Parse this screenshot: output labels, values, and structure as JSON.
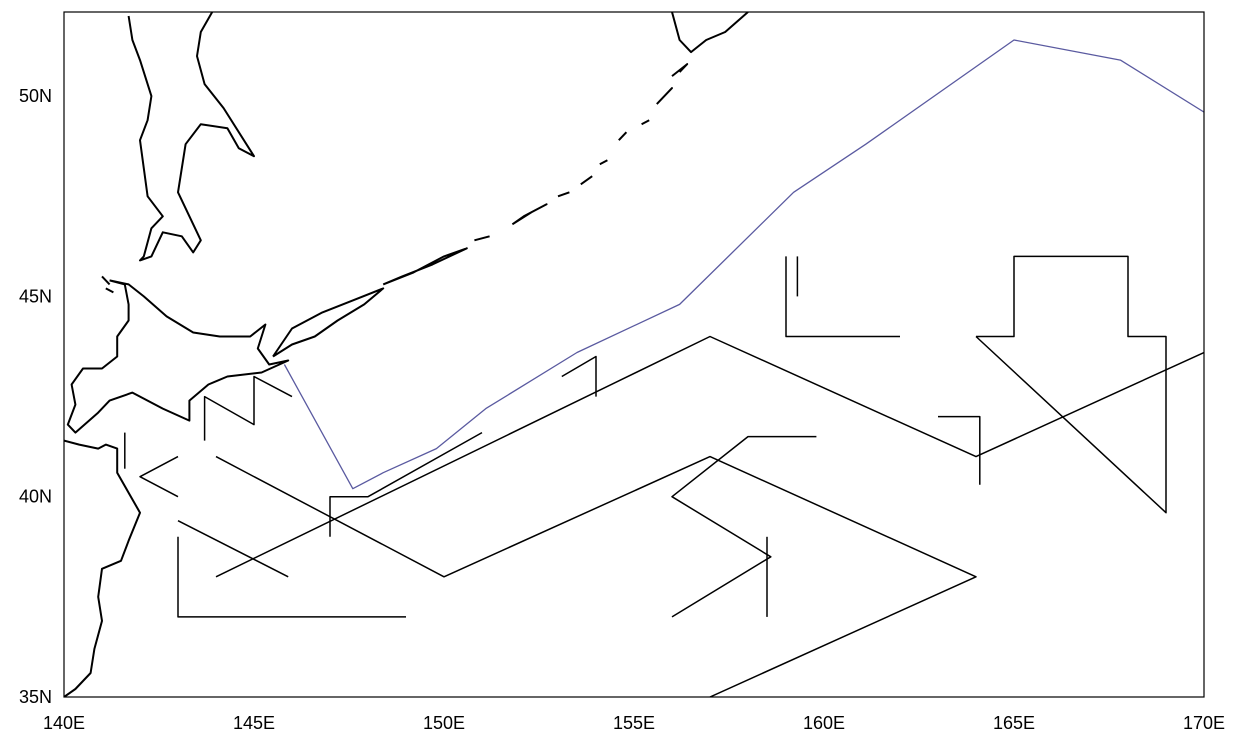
{
  "map": {
    "projection": "equirectangular",
    "lon_range": [
      140,
      170
    ],
    "lat_range": [
      35,
      52.1
    ],
    "frame_color": "#000000",
    "coastline_color": "#000000",
    "track_color": "#000000",
    "front_color": "#5a5aa0"
  },
  "axes": {
    "x_ticks": [
      {
        "lon": 140,
        "label": "140E"
      },
      {
        "lon": 145,
        "label": "145E"
      },
      {
        "lon": 150,
        "label": "150E"
      },
      {
        "lon": 155,
        "label": "155E"
      },
      {
        "lon": 160,
        "label": "160E"
      },
      {
        "lon": 165,
        "label": "165E"
      },
      {
        "lon": 170,
        "label": "170E"
      }
    ],
    "y_ticks": [
      {
        "lat": 35,
        "label": "35N"
      },
      {
        "lat": 40,
        "label": "40N"
      },
      {
        "lat": 45,
        "label": "45N"
      },
      {
        "lat": 50,
        "label": "50N"
      }
    ]
  },
  "front_line": [
    [
      145.8,
      43.3
    ],
    [
      147.6,
      40.2
    ],
    [
      148.4,
      40.6
    ],
    [
      149.8,
      41.2
    ],
    [
      151.1,
      42.2
    ],
    [
      153.5,
      43.6
    ],
    [
      156.2,
      44.8
    ],
    [
      159.2,
      47.6
    ],
    [
      161.1,
      48.8
    ],
    [
      165.0,
      51.4
    ],
    [
      167.8,
      50.9
    ],
    [
      170.0,
      49.6
    ]
  ],
  "tracks": [
    [
      [
        141.6,
        41.6
      ],
      [
        141.6,
        40.7
      ]
    ],
    [
      [
        143.0,
        41.0
      ],
      [
        142.0,
        40.5
      ],
      [
        143.0,
        40.0
      ]
    ],
    [
      [
        143.7,
        41.4
      ],
      [
        143.7,
        42.5
      ],
      [
        145.0,
        41.8
      ],
      [
        145.0,
        43.0
      ],
      [
        146.0,
        42.5
      ]
    ],
    [
      [
        144.0,
        41.0
      ],
      [
        150.0,
        38.0
      ],
      [
        157.0,
        41.0
      ],
      [
        164.0,
        38.0
      ],
      [
        157.0,
        35.0
      ]
    ],
    [
      [
        143.0,
        39.4
      ],
      [
        145.9,
        38.0
      ]
    ],
    [
      [
        143.0,
        39.0
      ],
      [
        143.0,
        37.0
      ],
      [
        149.0,
        37.0
      ]
    ],
    [
      [
        144.0,
        38.0
      ],
      [
        157.0,
        44.0
      ],
      [
        164.0,
        41.0
      ],
      [
        170.0,
        43.6
      ]
    ],
    [
      [
        147.0,
        39.0
      ],
      [
        147.0,
        40.0
      ],
      [
        148.0,
        40.0
      ],
      [
        151.0,
        41.6
      ]
    ],
    [
      [
        153.1,
        43.0
      ],
      [
        154.0,
        43.5
      ],
      [
        154.0,
        42.5
      ]
    ],
    [
      [
        156.0,
        37.0
      ],
      [
        158.6,
        38.5
      ],
      [
        156.0,
        40.0
      ],
      [
        158.0,
        41.5
      ],
      [
        159.8,
        41.5
      ]
    ],
    [
      [
        158.5,
        39.0
      ],
      [
        158.5,
        37.0
      ]
    ],
    [
      [
        159.0,
        46.0
      ],
      [
        159.0,
        44.0
      ],
      [
        162.0,
        44.0
      ]
    ],
    [
      [
        159.3,
        46.0
      ],
      [
        159.3,
        45.0
      ]
    ],
    [
      [
        163.0,
        42.0
      ],
      [
        164.1,
        42.0
      ],
      [
        164.1,
        40.3
      ]
    ],
    [
      [
        164.0,
        44.0
      ],
      [
        169.0,
        39.6
      ],
      [
        169.0,
        44.0
      ],
      [
        168.0,
        44.0
      ],
      [
        168.0,
        46.0
      ],
      [
        165.0,
        46.0
      ],
      [
        165.0,
        44.0
      ],
      [
        164.0,
        44.0
      ]
    ]
  ],
  "coastlines": {
    "sakhalin": [
      [
        141.7,
        52.0
      ],
      [
        141.8,
        51.4
      ],
      [
        142.0,
        50.9
      ],
      [
        142.3,
        50.0
      ],
      [
        142.2,
        49.4
      ],
      [
        142.0,
        48.9
      ],
      [
        142.1,
        48.2
      ],
      [
        142.2,
        47.5
      ],
      [
        142.6,
        47.0
      ],
      [
        142.3,
        46.7
      ],
      [
        142.1,
        46.0
      ],
      [
        142.0,
        45.9
      ],
      [
        142.3,
        46.0
      ],
      [
        142.6,
        46.6
      ],
      [
        143.1,
        46.5
      ],
      [
        143.4,
        46.1
      ],
      [
        143.6,
        46.4
      ],
      [
        143.3,
        47.0
      ],
      [
        143.0,
        47.6
      ],
      [
        143.2,
        48.8
      ],
      [
        143.6,
        49.3
      ],
      [
        144.3,
        49.2
      ],
      [
        144.6,
        48.7
      ],
      [
        145.0,
        48.5
      ],
      [
        144.2,
        49.7
      ],
      [
        143.7,
        50.3
      ],
      [
        143.5,
        51.0
      ],
      [
        143.6,
        51.6
      ],
      [
        143.9,
        52.1
      ]
    ],
    "hokkaido": [
      [
        141.2,
        45.4
      ],
      [
        141.7,
        45.3
      ],
      [
        142.1,
        45.0
      ],
      [
        142.7,
        44.5
      ],
      [
        143.4,
        44.1
      ],
      [
        144.1,
        44.0
      ],
      [
        144.9,
        44.0
      ],
      [
        145.3,
        44.3
      ],
      [
        145.1,
        43.7
      ],
      [
        145.4,
        43.3
      ],
      [
        145.9,
        43.4
      ],
      [
        145.2,
        43.1
      ],
      [
        144.3,
        43.0
      ],
      [
        143.8,
        42.8
      ],
      [
        143.3,
        42.4
      ],
      [
        143.3,
        41.9
      ],
      [
        142.6,
        42.2
      ],
      [
        141.8,
        42.6
      ],
      [
        141.2,
        42.4
      ],
      [
        140.9,
        42.1
      ],
      [
        140.3,
        41.6
      ],
      [
        140.1,
        41.8
      ],
      [
        140.3,
        42.3
      ],
      [
        140.2,
        42.8
      ],
      [
        140.5,
        43.2
      ],
      [
        141.0,
        43.2
      ],
      [
        141.4,
        43.5
      ],
      [
        141.4,
        44.0
      ],
      [
        141.7,
        44.4
      ],
      [
        141.7,
        44.8
      ],
      [
        141.6,
        45.3
      ],
      [
        141.2,
        45.4
      ]
    ],
    "honshu_north": [
      [
        140.0,
        41.4
      ],
      [
        140.4,
        41.3
      ],
      [
        140.9,
        41.2
      ],
      [
        141.1,
        41.3
      ],
      [
        141.4,
        41.2
      ],
      [
        141.4,
        40.6
      ],
      [
        141.7,
        40.1
      ],
      [
        142.0,
        39.6
      ],
      [
        141.7,
        38.9
      ],
      [
        141.5,
        38.4
      ],
      [
        141.0,
        38.2
      ],
      [
        140.9,
        37.5
      ],
      [
        141.0,
        36.9
      ],
      [
        140.8,
        36.2
      ],
      [
        140.7,
        35.6
      ],
      [
        140.3,
        35.2
      ],
      [
        140.0,
        35.0
      ]
    ],
    "kamchatka": [
      [
        156.0,
        52.1
      ],
      [
        156.2,
        51.4
      ],
      [
        156.5,
        51.1
      ],
      [
        156.9,
        51.4
      ],
      [
        157.4,
        51.6
      ],
      [
        158.0,
        52.1
      ]
    ],
    "kurils": [
      [
        [
          145.5,
          43.5
        ],
        [
          146.0,
          43.8
        ],
        [
          146.6,
          44.0
        ],
        [
          147.2,
          44.4
        ],
        [
          147.9,
          44.8
        ],
        [
          148.4,
          45.2
        ],
        [
          147.6,
          44.9
        ],
        [
          146.8,
          44.6
        ],
        [
          146.0,
          44.2
        ],
        [
          145.5,
          43.5
        ]
      ],
      [
        [
          148.4,
          45.3
        ],
        [
          149.2,
          45.6
        ],
        [
          150.0,
          46.0
        ],
        [
          150.6,
          46.2
        ],
        [
          149.7,
          45.8
        ],
        [
          148.9,
          45.5
        ],
        [
          148.4,
          45.3
        ]
      ],
      [
        [
          150.8,
          46.4
        ],
        [
          151.2,
          46.5
        ]
      ],
      [
        [
          151.8,
          46.8
        ],
        [
          152.3,
          47.1
        ],
        [
          152.7,
          47.3
        ],
        [
          152.1,
          47.0
        ],
        [
          151.8,
          46.8
        ]
      ],
      [
        [
          153.0,
          47.5
        ],
        [
          153.3,
          47.6
        ]
      ],
      [
        [
          153.6,
          47.8
        ],
        [
          153.9,
          48.0
        ]
      ],
      [
        [
          154.1,
          48.3
        ],
        [
          154.3,
          48.4
        ]
      ],
      [
        [
          154.6,
          48.9
        ],
        [
          154.8,
          49.1
        ]
      ],
      [
        [
          155.2,
          49.3
        ],
        [
          155.4,
          49.4
        ]
      ],
      [
        [
          155.6,
          49.8
        ],
        [
          156.0,
          50.2
        ],
        [
          155.8,
          50.0
        ]
      ],
      [
        [
          156.0,
          50.5
        ],
        [
          156.4,
          50.8
        ],
        [
          156.2,
          50.6
        ]
      ]
    ],
    "rebun_rishiri": [
      [
        [
          141.0,
          45.5
        ],
        [
          141.2,
          45.3
        ]
      ],
      [
        [
          141.3,
          45.1
        ],
        [
          141.1,
          45.2
        ]
      ]
    ]
  }
}
